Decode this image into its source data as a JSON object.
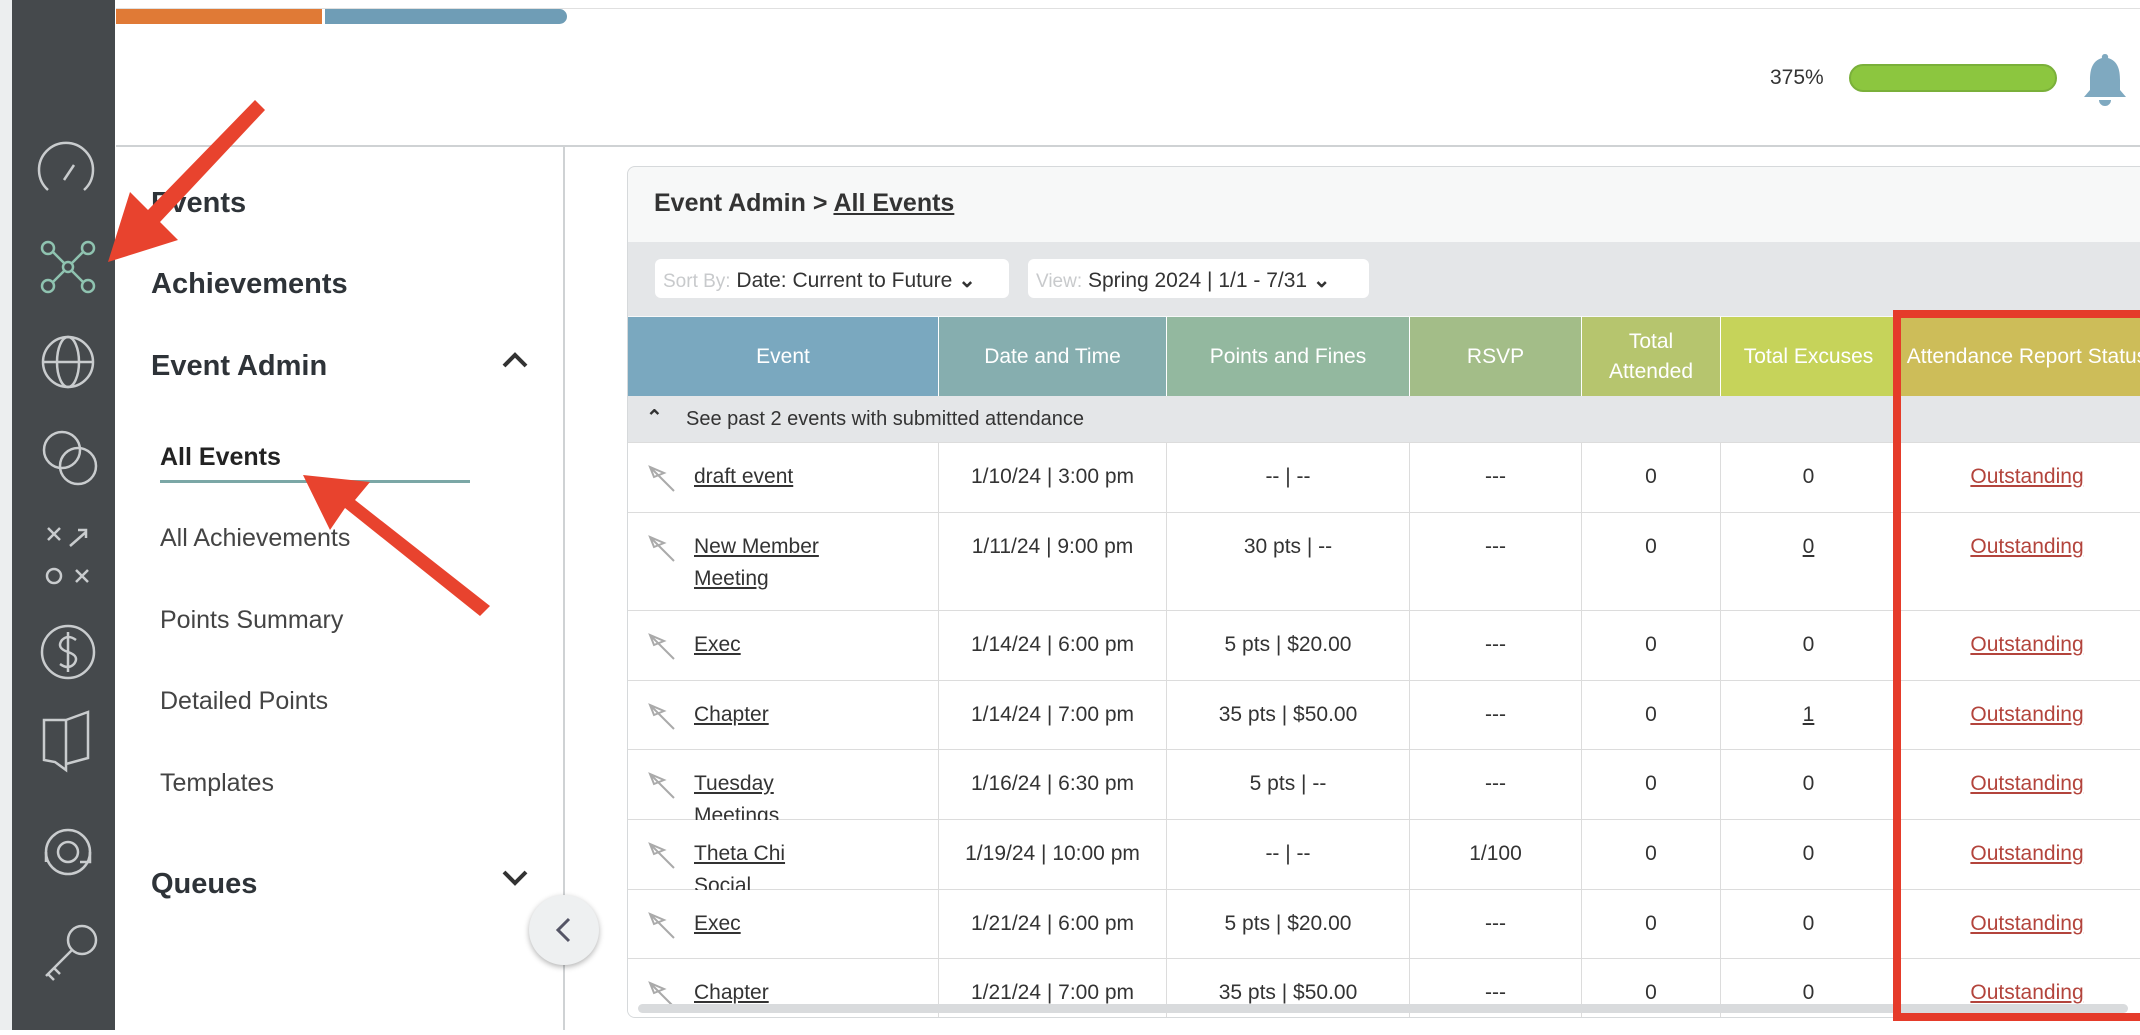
{
  "header": {
    "progress": "375%"
  },
  "nav": {
    "items": [
      "Events",
      "Achievements",
      "Event Admin"
    ],
    "subitems": [
      "All Events",
      "All Achievements",
      "Points Summary",
      "Detailed Points",
      "Templates"
    ],
    "queues": "Queues"
  },
  "breadcrumb": {
    "parent": "Event Admin",
    "current": "All Events"
  },
  "toolbar": {
    "sort_label": "Sort By:",
    "sort_value": "Date: Current to Future",
    "view_label": "View:",
    "view_value": "Spring 2024 | 1/1 - 7/31"
  },
  "table": {
    "columns": [
      "Event",
      "Date and Time",
      "Points and Fines",
      "RSVP",
      "Total Attended",
      "Total Excuses",
      "Attendance Report Status"
    ],
    "past_events": "See past 2 events with submitted attendance",
    "rows": [
      {
        "event": "draft event",
        "date": "1/10/24 | 3:00 pm",
        "points": "-- | --",
        "rsvp": "---",
        "attended": "0",
        "excuses": "0",
        "status": "Outstanding"
      },
      {
        "event": "New Member Meeting",
        "date": "1/11/24 | 9:00 pm",
        "points": "30 pts | --",
        "rsvp": "---",
        "attended": "0",
        "excuses": "0",
        "excuses_linked": true,
        "status": "Outstanding"
      },
      {
        "event": "Exec",
        "date": "1/14/24 | 6:00 pm",
        "points": "5 pts | $20.00",
        "rsvp": "---",
        "attended": "0",
        "excuses": "0",
        "status": "Outstanding"
      },
      {
        "event": "Chapter",
        "date": "1/14/24 | 7:00 pm",
        "points": "35 pts | $50.00",
        "rsvp": "---",
        "attended": "0",
        "excuses": "1",
        "excuses_linked": true,
        "status": "Outstanding"
      },
      {
        "event": "Tuesday Meetings",
        "date": "1/16/24 | 6:30 pm",
        "points": "5 pts | --",
        "rsvp": "---",
        "attended": "0",
        "excuses": "0",
        "status": "Outstanding"
      },
      {
        "event": "Theta Chi Social",
        "date": "1/19/24 | 10:00 pm",
        "points": "-- | --",
        "rsvp": "1/100",
        "attended": "0",
        "excuses": "0",
        "status": "Outstanding"
      },
      {
        "event": "Exec",
        "date": "1/21/24 | 6:00 pm",
        "points": "5 pts | $20.00",
        "rsvp": "---",
        "attended": "0",
        "excuses": "0",
        "status": "Outstanding"
      },
      {
        "event": "Chapter",
        "date": "1/21/24 | 7:00 pm",
        "points": "35 pts | $50.00",
        "rsvp": "---",
        "attended": "0",
        "excuses": "0",
        "status": "Outstanding"
      }
    ]
  }
}
